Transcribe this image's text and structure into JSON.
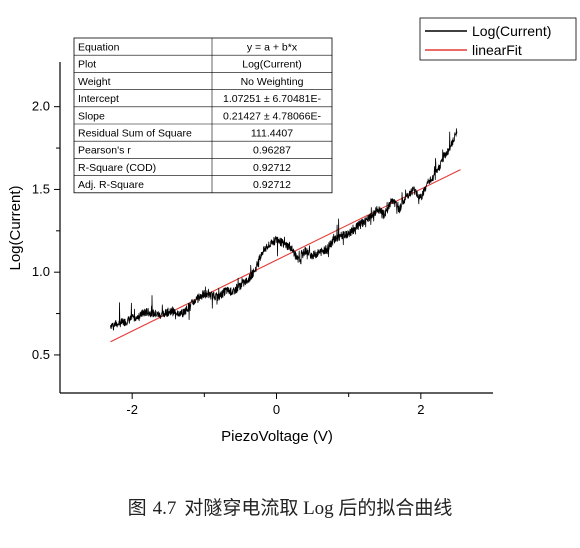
{
  "chart_data": {
    "type": "line",
    "xlabel": "PiezoVoltage (V)",
    "ylabel": "Log(Current)",
    "xlim": [
      -3.0,
      3.0
    ],
    "ylim": [
      0.27,
      2.27
    ],
    "xticks": [
      -2,
      -1,
      0,
      1,
      2
    ],
    "xtick_labels": [
      "-2",
      "0",
      "2"
    ],
    "yticks": [
      0.5,
      0.75,
      1.0,
      1.25,
      1.5,
      1.75,
      2.0
    ],
    "ytick_labels": [
      "0.5",
      "1.0",
      "1.5",
      "2.0"
    ],
    "series": [
      {
        "name": "Log(Current)",
        "color": "#000000",
        "x": [
          -2.3,
          -2.2,
          -2.1,
          -2.0,
          -1.9,
          -1.8,
          -1.7,
          -1.6,
          -1.5,
          -1.4,
          -1.3,
          -1.2,
          -1.1,
          -1.0,
          -0.9,
          -0.8,
          -0.7,
          -0.6,
          -0.5,
          -0.4,
          -0.3,
          -0.2,
          -0.1,
          0.0,
          0.1,
          0.2,
          0.3,
          0.4,
          0.5,
          0.6,
          0.7,
          0.8,
          0.9,
          1.0,
          1.1,
          1.2,
          1.3,
          1.4,
          1.5,
          1.6,
          1.7,
          1.8,
          1.9,
          2.0,
          2.1,
          2.2,
          2.3,
          2.4,
          2.5
        ],
        "y": [
          0.68,
          0.69,
          0.7,
          0.72,
          0.74,
          0.76,
          0.75,
          0.74,
          0.76,
          0.76,
          0.75,
          0.8,
          0.84,
          0.87,
          0.86,
          0.85,
          0.89,
          0.88,
          0.92,
          0.95,
          1.01,
          1.12,
          1.16,
          1.2,
          1.17,
          1.15,
          1.07,
          1.13,
          1.1,
          1.12,
          1.14,
          1.2,
          1.22,
          1.23,
          1.27,
          1.3,
          1.33,
          1.38,
          1.35,
          1.44,
          1.38,
          1.46,
          1.5,
          1.45,
          1.54,
          1.58,
          1.68,
          1.75,
          1.85
        ]
      },
      {
        "name": "linearFit",
        "color": "#e53935",
        "x": [
          -2.3,
          2.55
        ],
        "y": [
          0.58,
          1.62
        ]
      }
    ],
    "legend_position": "top-right",
    "grid": false
  },
  "fit_table": {
    "rows": [
      {
        "label": "Equation",
        "value": "y = a + b*x"
      },
      {
        "label": "Plot",
        "value": "Log(Current)"
      },
      {
        "label": "Weight",
        "value": "No Weighting"
      },
      {
        "label": "Intercept",
        "value": "1.07251 ± 6.70481E-"
      },
      {
        "label": "Slope",
        "value": "0.21427 ± 4.78066E-"
      },
      {
        "label": "Residual Sum of Square",
        "value": "111.4407"
      },
      {
        "label": "Pearson's r",
        "value": "0.96287"
      },
      {
        "label": "R-Square (COD)",
        "value": "0.92712"
      },
      {
        "label": "Adj. R-Square",
        "value": "0.92712"
      }
    ]
  },
  "caption": {
    "figure_word": "图",
    "number": "4.7",
    "text": "对隧穿电流取 Log 后的拟合曲线"
  }
}
